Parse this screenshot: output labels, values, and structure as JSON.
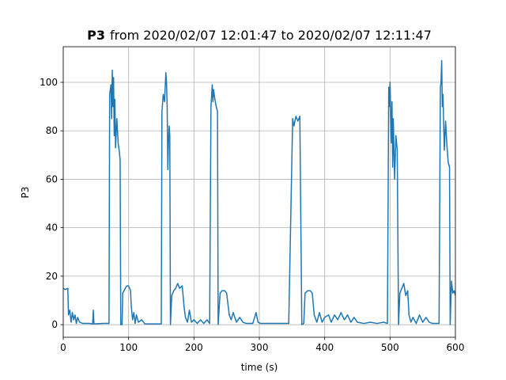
{
  "chart_data": {
    "type": "line",
    "title": {
      "name": "P3",
      "rest": "from 2020/02/07 12:01:47 to 2020/02/07 12:11:47"
    },
    "x_label": "time (s)",
    "y_label": "P3",
    "x": [
      0,
      3,
      7,
      8,
      10,
      12,
      14,
      16,
      18,
      20,
      22,
      25,
      30,
      40,
      45,
      46,
      47,
      60,
      70,
      71,
      73,
      74,
      75,
      76,
      77,
      78,
      79,
      80,
      82,
      84,
      86,
      87,
      88,
      90,
      91,
      93,
      95,
      97,
      100,
      103,
      104,
      106,
      108,
      110,
      112,
      115,
      120,
      125,
      150,
      151,
      153,
      155,
      157,
      158,
      159,
      160,
      161,
      162,
      163,
      164,
      166,
      169,
      172,
      175,
      178,
      182,
      185,
      187,
      190,
      193,
      196,
      200,
      205,
      210,
      215,
      220,
      224,
      226,
      228,
      229,
      230,
      232,
      234,
      236,
      237,
      240,
      243,
      247,
      250,
      254,
      257,
      260,
      265,
      270,
      275,
      280,
      290,
      295,
      298,
      302,
      345,
      351,
      353,
      356,
      359,
      362,
      365,
      368,
      370,
      374,
      378,
      381,
      384,
      388,
      392,
      396,
      400,
      406,
      410,
      415,
      420,
      425,
      430,
      435,
      440,
      445,
      450,
      460,
      470,
      480,
      490,
      496,
      498,
      499,
      500,
      502,
      503,
      504,
      505,
      507,
      509,
      511,
      513,
      515,
      518,
      521,
      524,
      527,
      529,
      532,
      535,
      540,
      545,
      550,
      555,
      560,
      565,
      575,
      577,
      578,
      579,
      580,
      581,
      583,
      585,
      587,
      589,
      591,
      592,
      594,
      596,
      598,
      600
    ],
    "values": [
      15,
      14.5,
      15,
      4,
      6,
      1,
      5,
      2,
      4,
      0.5,
      3,
      1,
      0.5,
      0.5,
      0.3,
      6,
      0.3,
      0.5,
      0.5,
      95,
      99,
      85,
      105,
      90,
      102,
      78,
      93,
      73,
      85,
      75,
      71,
      68,
      0,
      0,
      13,
      14,
      15,
      16,
      16,
      14,
      8,
      2,
      5,
      0.5,
      4,
      1,
      2,
      0.3,
      0.3,
      88,
      95,
      92,
      104,
      100,
      90,
      64,
      75,
      82,
      78,
      0,
      12,
      14,
      15,
      17,
      15,
      16,
      7,
      3,
      1,
      6,
      1,
      2,
      0.5,
      2,
      0.5,
      2,
      0.5,
      90,
      99,
      92,
      97,
      93,
      90,
      88,
      0,
      13,
      14,
      14,
      13,
      4,
      2,
      5,
      1,
      3,
      1,
      0.5,
      0.5,
      5,
      1,
      0.5,
      0.5,
      85,
      82,
      86,
      84,
      86,
      0,
      0.5,
      13,
      14,
      14,
      13,
      4,
      1,
      5,
      1,
      3,
      4,
      1,
      4,
      2,
      5,
      2,
      4,
      1,
      3,
      1,
      0.5,
      1,
      0.5,
      1,
      0.5,
      98,
      90,
      100,
      75,
      92,
      65,
      85,
      60,
      78,
      72,
      0,
      13,
      15,
      17,
      12,
      14,
      4,
      1,
      3,
      0.5,
      4,
      1,
      3,
      1,
      0.5,
      0.5,
      98,
      100,
      109,
      90,
      95,
      72,
      84,
      74,
      67,
      65,
      0,
      18,
      13,
      14,
      12
    ],
    "color": "#1f77b4",
    "xlim": [
      0,
      600
    ],
    "xticks": [
      0,
      100,
      200,
      300,
      400,
      500,
      600
    ],
    "ylim": [
      -5.2,
      114.7
    ],
    "yticks": [
      0,
      20,
      40,
      60,
      80,
      100
    ],
    "grid": true
  }
}
